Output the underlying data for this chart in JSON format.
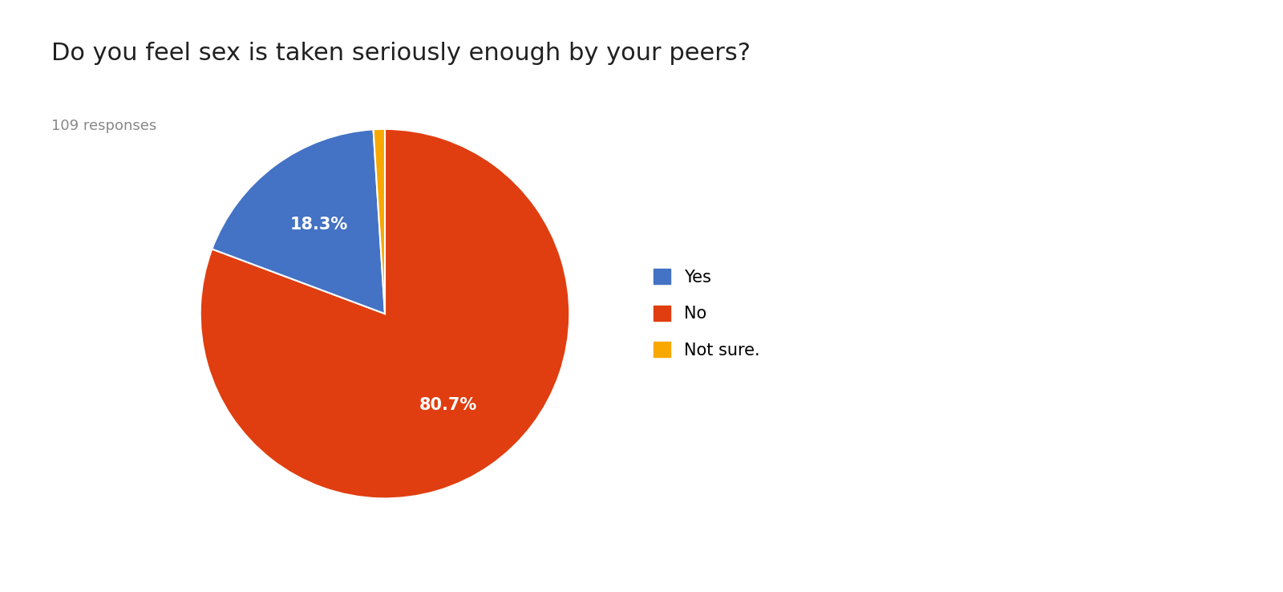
{
  "title": "Do you feel sex is taken seriously enough by your peers?",
  "subtitle": "109 responses",
  "labels": [
    "Yes",
    "No",
    "Not sure."
  ],
  "values": [
    18.3,
    80.7,
    1.0
  ],
  "colors": [
    "#4472C4",
    "#E03E10",
    "#F9A800"
  ],
  "background_color": "#ffffff",
  "title_fontsize": 22,
  "subtitle_fontsize": 13,
  "subtitle_color": "#888888",
  "title_color": "#212121",
  "autopct_fontsize": 15,
  "legend_fontsize": 15,
  "startangle": 90,
  "pct_distance": 0.6
}
